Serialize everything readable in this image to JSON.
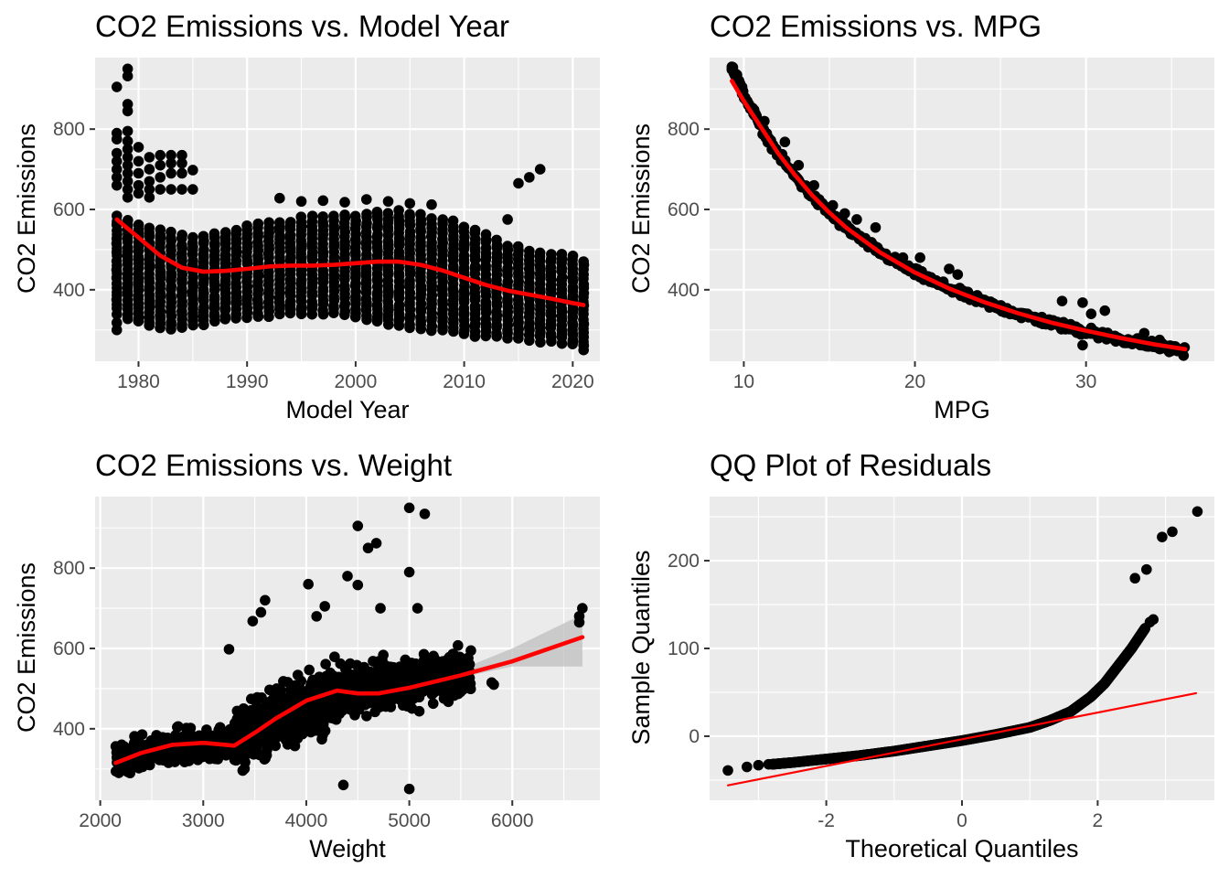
{
  "chart_data": [
    {
      "type": "scatter",
      "title": "CO2 Emissions vs. Model Year",
      "xlabel": "Model Year",
      "ylabel": "CO2 Emissions",
      "xlim": [
        1976,
        2022.5
      ],
      "ylim": [
        222,
        978
      ],
      "x_ticks": [
        1980,
        1990,
        2000,
        2010,
        2020
      ],
      "y_ticks": [
        400,
        600,
        800
      ],
      "grid": true,
      "points": [
        [
          1978,
          905
        ],
        [
          1979,
          950
        ],
        [
          1979,
          932
        ],
        [
          1979,
          862
        ],
        [
          1979,
          845
        ],
        [
          1978,
          790
        ],
        [
          1978,
          775
        ],
        [
          1978,
          740
        ],
        [
          1978,
          720
        ],
        [
          1978,
          700
        ],
        [
          1978,
          680
        ],
        [
          1978,
          660
        ],
        [
          1979,
          795
        ],
        [
          1979,
          770
        ],
        [
          1979,
          750
        ],
        [
          1979,
          730
        ],
        [
          1979,
          710
        ],
        [
          1979,
          690
        ],
        [
          1979,
          670
        ],
        [
          1979,
          650
        ],
        [
          1979,
          630
        ],
        [
          1980,
          755
        ],
        [
          1980,
          720
        ],
        [
          1980,
          690
        ],
        [
          1980,
          660
        ],
        [
          1980,
          640
        ],
        [
          1981,
          730
        ],
        [
          1981,
          700
        ],
        [
          1981,
          670
        ],
        [
          1981,
          650
        ],
        [
          1981,
          630
        ],
        [
          1982,
          735
        ],
        [
          1982,
          710
        ],
        [
          1982,
          680
        ],
        [
          1982,
          650
        ],
        [
          1983,
          735
        ],
        [
          1983,
          715
        ],
        [
          1983,
          690
        ],
        [
          1983,
          650
        ],
        [
          1984,
          735
        ],
        [
          1984,
          715
        ],
        [
          1984,
          690
        ],
        [
          1984,
          650
        ],
        [
          1985,
          698
        ],
        [
          1985,
          650
        ],
        [
          2015,
          665
        ],
        [
          2016,
          680
        ],
        [
          2017,
          700
        ],
        [
          2014,
          575
        ],
        [
          1993,
          628
        ],
        [
          1995,
          620
        ],
        [
          1997,
          622
        ],
        [
          1999,
          618
        ],
        [
          2001,
          625
        ],
        [
          2003,
          620
        ],
        [
          2005,
          615
        ],
        [
          2007,
          612
        ],
        [
          1978,
          300
        ],
        [
          1978,
          318
        ],
        [
          1979,
          330
        ],
        [
          2021,
          250
        ],
        [
          2021,
          262
        ],
        [
          2020,
          270
        ]
      ],
      "band": {
        "x_start": 1978,
        "x_end": 2021,
        "step": 1,
        "upper": [
          590,
          580,
          565,
          560,
          555,
          548,
          545,
          540,
          542,
          550,
          555,
          560,
          565,
          570,
          575,
          575,
          578,
          580,
          582,
          585,
          585,
          588,
          590,
          595,
          598,
          600,
          600,
          598,
          590,
          585,
          580,
          570,
          560,
          550,
          540,
          530,
          520,
          515,
          505,
          500,
          495,
          490,
          485,
          480
        ],
        "lower": [
          340,
          330,
          320,
          310,
          305,
          300,
          305,
          310,
          315,
          320,
          325,
          330,
          330,
          332,
          335,
          338,
          340,
          338,
          340,
          340,
          340,
          335,
          330,
          325,
          320,
          315,
          310,
          305,
          300,
          300,
          298,
          295,
          290,
          285,
          285,
          282,
          280,
          278,
          275,
          272,
          270,
          268,
          265,
          262
        ]
      },
      "series": [
        {
          "kind": "smooth",
          "x": [
            1978,
            1980,
            1982,
            1984,
            1986,
            1988,
            1990,
            1992,
            1994,
            1996,
            1998,
            2000,
            2002,
            2004,
            2006,
            2008,
            2010,
            2012,
            2014,
            2016,
            2018,
            2020,
            2021
          ],
          "values": [
            575,
            530,
            485,
            455,
            445,
            447,
            452,
            458,
            460,
            460,
            462,
            466,
            470,
            470,
            462,
            448,
            430,
            412,
            398,
            388,
            378,
            367,
            362
          ]
        }
      ]
    },
    {
      "type": "scatter",
      "title": "CO2 Emissions vs. MPG",
      "xlabel": "MPG",
      "ylabel": "CO2 Emissions",
      "xlim": [
        8,
        37.5
      ],
      "ylim": [
        222,
        978
      ],
      "x_ticks": [
        10,
        20,
        30
      ],
      "y_ticks": [
        400,
        600,
        800
      ],
      "grid": true,
      "points": [
        [
          9.3,
          955
        ],
        [
          9.6,
          935
        ],
        [
          9.9,
          905
        ],
        [
          10.3,
          862
        ],
        [
          10.6,
          848
        ],
        [
          11.2,
          820
        ],
        [
          12.4,
          768
        ],
        [
          13.2,
          710
        ],
        [
          14.1,
          660
        ],
        [
          15.2,
          610
        ],
        [
          15.9,
          590
        ],
        [
          16.6,
          575
        ],
        [
          17.7,
          555
        ],
        [
          19.3,
          480
        ],
        [
          20.3,
          480
        ],
        [
          22.0,
          452
        ],
        [
          22.5,
          438
        ],
        [
          28.6,
          372
        ],
        [
          29.8,
          368
        ],
        [
          30.3,
          340
        ],
        [
          31.1,
          348
        ],
        [
          30.3,
          305
        ],
        [
          29.8,
          262
        ],
        [
          33.4,
          292
        ],
        [
          34.3,
          275
        ],
        [
          35.6,
          250
        ]
      ],
      "curve": {
        "k": 8870,
        "x_start": 9.3,
        "x_end": 35.8,
        "jitter": 7
      },
      "series": [
        {
          "kind": "smooth",
          "x": [
            9.3,
            10,
            11,
            12,
            13,
            14,
            15,
            16,
            18,
            20,
            22,
            24,
            26,
            28,
            30,
            32,
            34,
            35.8
          ],
          "values": [
            920,
            870,
            805,
            740,
            685,
            635,
            592,
            554,
            492,
            443,
            403,
            370,
            342,
            318,
            298,
            280,
            264,
            252
          ]
        }
      ]
    },
    {
      "type": "scatter",
      "title": "CO2 Emissions vs. Weight",
      "xlabel": "Weight",
      "ylabel": "CO2 Emissions",
      "xlim": [
        1950,
        6850
      ],
      "ylim": [
        222,
        978
      ],
      "x_ticks": [
        2000,
        3000,
        4000,
        5000,
        6000
      ],
      "y_ticks": [
        400,
        600,
        800
      ],
      "grid": true,
      "points": [
        [
          5000,
          950
        ],
        [
          5150,
          935
        ],
        [
          4500,
          905
        ],
        [
          4600,
          850
        ],
        [
          4680,
          862
        ],
        [
          5000,
          790
        ],
        [
          4400,
          780
        ],
        [
          4020,
          760
        ],
        [
          4500,
          758
        ],
        [
          4720,
          700
        ],
        [
          5080,
          700
        ],
        [
          3560,
          690
        ],
        [
          4180,
          705
        ],
        [
          3480,
          668
        ],
        [
          4100,
          680
        ],
        [
          3600,
          720
        ],
        [
          3250,
          598
        ],
        [
          4900,
          545
        ],
        [
          4360,
          260
        ],
        [
          5000,
          250
        ],
        [
          2850,
          352
        ],
        [
          2980,
          358
        ],
        [
          6680,
          700
        ],
        [
          6650,
          680
        ],
        [
          6650,
          665
        ],
        [
          5800,
          515
        ],
        [
          5820,
          510
        ]
      ],
      "cloud": [
        {
          "x_from": 2150,
          "x_to": 3300,
          "center": [
            330,
            370
          ],
          "spread": 50,
          "count": 240
        },
        {
          "x_from": 3300,
          "x_to": 4300,
          "center": [
            370,
            490
          ],
          "spread": 90,
          "count": 500
        },
        {
          "x_from": 4300,
          "x_to": 5600,
          "center": [
            490,
            540
          ],
          "spread": 70,
          "count": 400
        }
      ],
      "band": {
        "x": [
          2150,
          2500,
          3000,
          3300,
          3700,
          4000,
          4300,
          4700,
          5000,
          5500,
          6000,
          6680
        ],
        "upper": [
          345,
          352,
          372,
          366,
          420,
          470,
          505,
          500,
          518,
          548,
          600,
          685
        ],
        "lower": [
          285,
          318,
          352,
          346,
          392,
          448,
          478,
          478,
          500,
          528,
          555,
          555
        ]
      },
      "series": [
        {
          "kind": "smooth",
          "x": [
            2150,
            2400,
            2700,
            3000,
            3300,
            3500,
            3700,
            4000,
            4300,
            4500,
            4700,
            5000,
            5500,
            6000,
            6680
          ],
          "values": [
            315,
            340,
            360,
            365,
            358,
            390,
            425,
            470,
            495,
            488,
            488,
            502,
            533,
            568,
            628
          ]
        }
      ]
    },
    {
      "type": "scatter",
      "title": "QQ Plot of Residuals",
      "xlabel": "Theoretical Quantiles",
      "ylabel": "Sample Quantiles",
      "xlim": [
        -3.72,
        3.72
      ],
      "ylim": [
        -73,
        273
      ],
      "x_ticks": [
        -2,
        0,
        2
      ],
      "y_ticks": [
        0,
        100,
        200
      ],
      "grid": true,
      "points": [
        [
          -3.45,
          -39
        ],
        [
          -3.17,
          -35
        ],
        [
          -3.0,
          -33
        ],
        [
          -2.85,
          -32
        ],
        [
          2.7,
          123
        ],
        [
          2.77,
          130
        ],
        [
          2.82,
          133
        ],
        [
          2.55,
          180
        ],
        [
          2.72,
          190
        ],
        [
          2.95,
          227
        ],
        [
          3.1,
          233
        ],
        [
          3.47,
          256
        ]
      ],
      "qq_curve": {
        "x": [
          -2.8,
          -2.5,
          -2,
          -1.5,
          -1,
          -0.5,
          0,
          0.5,
          1,
          1.3,
          1.6,
          1.9,
          2.1,
          2.3,
          2.5,
          2.7
        ],
        "y": [
          -32,
          -30,
          -26,
          -22,
          -17,
          -11,
          -5,
          2,
          10,
          18,
          28,
          45,
          60,
          80,
          100,
          123
        ]
      },
      "series": [
        {
          "kind": "reference-line",
          "x": [
            -3.45,
            3.45
          ],
          "values": [
            -56,
            49
          ]
        }
      ]
    }
  ],
  "colors": {
    "panel_bg": "#ebebeb",
    "grid": "#ffffff",
    "point": "#000000",
    "fit": "#ff0000",
    "band": "#bfbfbf"
  }
}
